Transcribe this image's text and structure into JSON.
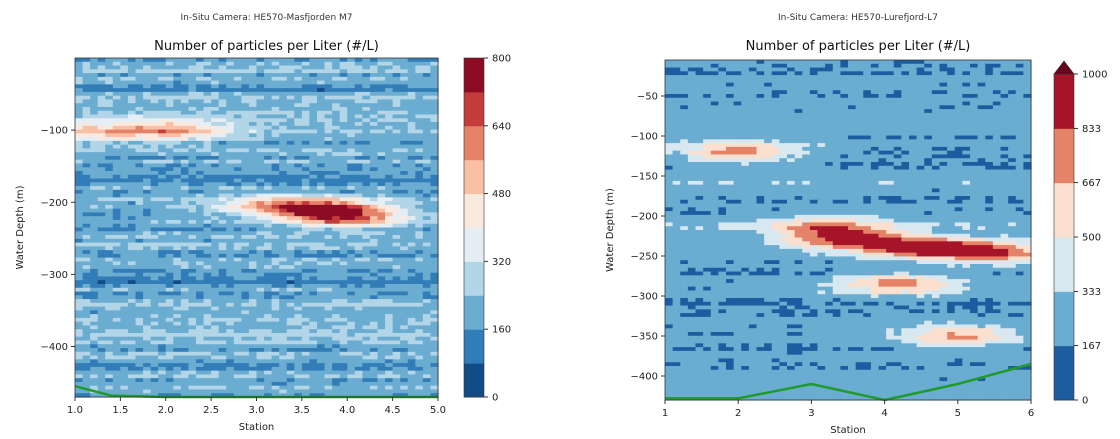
{
  "chart_data": [
    {
      "type": "heatmap",
      "suptitle": "In-Situ Camera: HE570-Masfjorden M7",
      "title": "Number of particles per Liter (#/L)",
      "xlabel": "Station",
      "ylabel": "Water Depth (m)",
      "xlim": [
        1.0,
        5.0
      ],
      "ylim": [
        -470,
        0
      ],
      "xticks": [
        "1.0",
        "1.5",
        "2.0",
        "2.5",
        "3.0",
        "3.5",
        "4.0",
        "4.5",
        "5.0"
      ],
      "yticks": [
        "-100",
        "-200",
        "-300",
        "-400"
      ],
      "colorbar": {
        "min": 0,
        "max": 800,
        "ticks": [
          "0",
          "160",
          "320",
          "480",
          "640",
          "800"
        ],
        "levels": 10,
        "extend_max": false
      },
      "green_line": {
        "x": [
          1.0,
          1.4,
          2.0,
          5.0
        ],
        "y": [
          -455,
          -468,
          -470,
          -470
        ]
      },
      "hotspots": [
        {
          "x": 3.8,
          "y": -210,
          "value": 600
        },
        {
          "x": 4.0,
          "y": -222,
          "value": 560
        },
        {
          "x": 1.2,
          "y": -102,
          "value": 470
        },
        {
          "x": 2.1,
          "y": -100,
          "value": 520
        },
        {
          "x": 3.2,
          "y": -205,
          "value": 500
        }
      ]
    },
    {
      "type": "heatmap",
      "suptitle": "In-Situ Camera: HE570-Lurefjord-L7",
      "title": "Number of particles per Liter (#/L)",
      "xlabel": "Station",
      "ylabel": "Water Depth (m)",
      "xlim": [
        1,
        6
      ],
      "ylim": [
        -430,
        -5
      ],
      "xticks": [
        "1",
        "2",
        "3",
        "4",
        "5",
        "6"
      ],
      "yticks": [
        "-50",
        "-100",
        "-150",
        "-200",
        "-250",
        "-300",
        "-350",
        "-400"
      ],
      "colorbar": {
        "min": 0,
        "max": 1000,
        "ticks": [
          "0",
          "167",
          "333",
          "500",
          "667",
          "833",
          "1000"
        ],
        "levels": 6,
        "extend_max": true
      },
      "green_line": {
        "x": [
          1,
          2,
          3,
          4,
          5,
          6
        ],
        "y": [
          -428,
          -428,
          -410,
          -430,
          -410,
          -385
        ]
      },
      "hotspots": [
        {
          "x": 4.5,
          "y": -240,
          "value": 930
        },
        {
          "x": 5.5,
          "y": -245,
          "value": 880
        },
        {
          "x": 3.5,
          "y": -230,
          "value": 820
        },
        {
          "x": 4.2,
          "y": -285,
          "value": 760
        },
        {
          "x": 5.0,
          "y": -350,
          "value": 720
        },
        {
          "x": 2.0,
          "y": -120,
          "value": 780
        },
        {
          "x": 3.2,
          "y": -215,
          "value": 700
        }
      ]
    }
  ]
}
